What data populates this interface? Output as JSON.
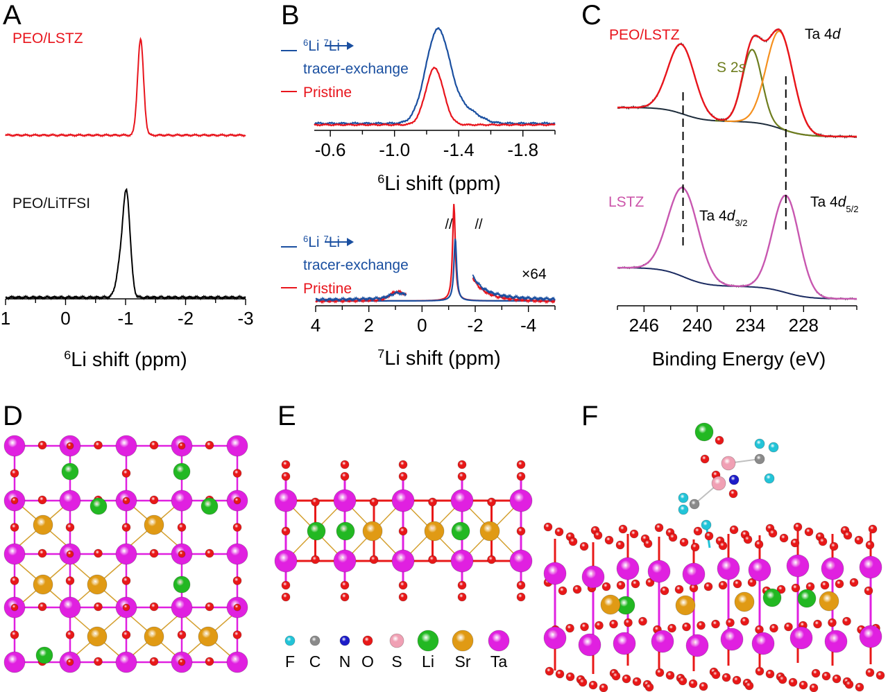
{
  "figure": {
    "panels": {
      "A": "A",
      "B": "B",
      "C": "C",
      "D": "D",
      "E": "E",
      "F": "F"
    }
  },
  "chart_data": [
    {
      "id": "A",
      "type": "line",
      "title": "",
      "xlabel_sup": "6",
      "xlabel": "Li shift (ppm)",
      "ylabel": "",
      "xlim": [
        1,
        -3
      ],
      "xticks": [
        1,
        0,
        -1,
        -2,
        -3
      ],
      "xtick_labels": [
        "1",
        "0",
        "-1",
        "-2",
        "-3"
      ],
      "minor_tick_step": 0.5,
      "series": [
        {
          "name": "PEO/LSTZ",
          "color": "#e8141c",
          "peak_center": -1.25,
          "peak_width": 0.05,
          "peak_height": 1.0,
          "label_position": "top-left"
        },
        {
          "name": "PEO/LiTFSI",
          "color": "#000000",
          "peak_center": -1.02,
          "peak_width": 0.06,
          "peak_height": 1.0,
          "shoulder_center": -0.92,
          "shoulder_height": 0.35,
          "label_position": "middle-left"
        }
      ]
    },
    {
      "id": "B-top",
      "type": "line",
      "xlabel_sup": "6",
      "xlabel": "Li shift (ppm)",
      "xlim": [
        -0.5,
        -2.0
      ],
      "xticks": [
        -0.6,
        -1.0,
        -1.4,
        -1.8
      ],
      "xtick_labels": [
        "-0.6",
        "-1.0",
        "-1.4",
        "-1.8"
      ],
      "minor_tick_step": 0.2,
      "legend": [
        {
          "sup1": "6",
          "text1": "Li",
          "arrow": "→",
          "sup2": "7",
          "text2": "Li",
          "line2": "tracer-exchange",
          "color": "#1a4fa0"
        },
        {
          "text": "Pristine",
          "color": "#e8141c"
        }
      ],
      "legend_position": "top-left",
      "series": [
        {
          "name": "6Li→7Li tracer-exchange",
          "color": "#1a4fa0",
          "peak_center": -1.27,
          "peak_width": 0.075,
          "peak_height": 1.0,
          "shoulder_center": -1.45,
          "shoulder_height": 0.12
        },
        {
          "name": "Pristine",
          "color": "#e8141c",
          "peak_center": -1.25,
          "peak_width": 0.055,
          "peak_height": 0.62
        }
      ]
    },
    {
      "id": "B-bottom",
      "type": "line",
      "xlabel_sup": "7",
      "xlabel": "Li shift (ppm)",
      "xlim": [
        4,
        -5
      ],
      "xticks": [
        4,
        2,
        0,
        -2,
        -4
      ],
      "xtick_labels": [
        "4",
        "2",
        "0",
        "-2",
        "-4"
      ],
      "minor_tick_step": 1,
      "annotation": "×64",
      "break_marks": [
        "//",
        "//"
      ],
      "legend": [
        {
          "sup1": "6",
          "text1": "Li",
          "arrow": "→",
          "sup2": "7",
          "text2": "Li",
          "line2": "tracer-exchange",
          "color": "#1a4fa0"
        },
        {
          "text": "Pristine",
          "color": "#e8141c"
        }
      ],
      "legend_position": "top-left",
      "series": [
        {
          "name": "6Li→7Li tracer-exchange",
          "color": "#1a4fa0",
          "peak_center": -1.25,
          "main_height": 0.65
        },
        {
          "name": "Pristine",
          "color": "#e8141c",
          "peak_center": -1.2,
          "main_height": 1.0
        }
      ]
    },
    {
      "id": "C",
      "type": "line",
      "xlabel": "Binding Energy (eV)",
      "xlim": [
        249,
        222
      ],
      "xticks": [
        246,
        240,
        234,
        228
      ],
      "xtick_labels": [
        "246",
        "240",
        "234",
        "228"
      ],
      "minor_tick_step": 3,
      "dashed_lines": [
        241.6,
        230.0
      ],
      "top": {
        "label": "PEO/LSTZ",
        "label_color": "#e8141c",
        "annotations": [
          {
            "text": "Ta 4",
            "italic": "d",
            "color": "#000000"
          },
          {
            "text": "S 2",
            "italic": "s",
            "color": "#6e7d1e"
          }
        ],
        "components": [
          {
            "name": "envelope",
            "color": "#e8141c"
          },
          {
            "name": "S 2s",
            "color": "#6e7d1e",
            "center": 233.8,
            "height": 0.72
          },
          {
            "name": "Ta 4d5/2",
            "color": "#f5901e",
            "center": 230.6,
            "height": 1.0
          },
          {
            "name": "background",
            "color": "#1c2b3a"
          }
        ],
        "peaks": [
          {
            "center": 241.8,
            "height": 0.7
          }
        ]
      },
      "bottom": {
        "label": "LSTZ",
        "label_color": "#cc55aa",
        "annotations": [
          {
            "text": "Ta 4",
            "italic": "d",
            "sub": "3/2",
            "color": "#000000"
          },
          {
            "text": "Ta 4",
            "italic": "d",
            "sub": "5/2",
            "color": "#000000"
          }
        ],
        "peaks": [
          {
            "center": 241.6,
            "height": 0.75
          },
          {
            "center": 230.0,
            "height": 1.0
          }
        ],
        "fit_color": "#c857b0",
        "background_color": "#1a2a60"
      }
    }
  ],
  "structures": {
    "legend": [
      {
        "symbol": "F",
        "color": "#22c4d8",
        "size": "small"
      },
      {
        "symbol": "C",
        "color": "#8a8a8a",
        "size": "small"
      },
      {
        "symbol": "N",
        "color": "#1c1cc8",
        "size": "small"
      },
      {
        "symbol": "O",
        "color": "#e81818",
        "size": "small"
      },
      {
        "symbol": "S",
        "color": "#f0a0b4",
        "size": "medium"
      },
      {
        "symbol": "Li",
        "color": "#22b822",
        "size": "large"
      },
      {
        "symbol": "Sr",
        "color": "#e09a14",
        "size": "large"
      },
      {
        "symbol": "Ta",
        "color": "#e020e0",
        "size": "large"
      }
    ]
  }
}
